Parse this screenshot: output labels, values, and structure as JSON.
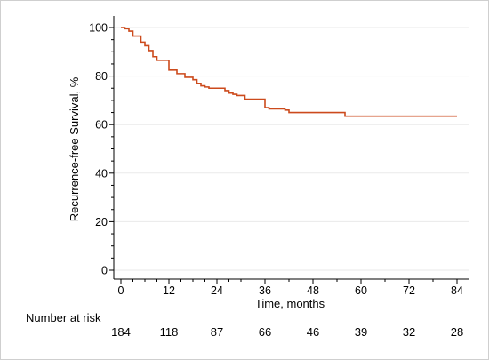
{
  "colors": {
    "curve": "#cc4a1c",
    "axis": "#000000",
    "grid": "#eaeaea",
    "border": "#cfcfcf"
  },
  "chart_data": {
    "type": "line",
    "subtype": "kaplan-meier step",
    "title": "",
    "xlabel": "Time, months",
    "ylabel": "Recurrence-free Survival, %",
    "xlim": [
      0,
      85
    ],
    "ylim": [
      0,
      100
    ],
    "xticks": [
      0,
      12,
      24,
      36,
      48,
      60,
      72,
      84
    ],
    "yticks": [
      0,
      20,
      40,
      60,
      80,
      100
    ],
    "grid": "horizontal",
    "series": [
      {
        "x": [
          0,
          1,
          2,
          3,
          5,
          6,
          7,
          8,
          9,
          12,
          14,
          16,
          18,
          19,
          20,
          21,
          22,
          26,
          27,
          28,
          29,
          31,
          36,
          37,
          41,
          42,
          56,
          84
        ],
        "y": [
          100,
          99.5,
          98.5,
          96.5,
          94,
          92.5,
          90.5,
          88,
          86.5,
          82.5,
          81,
          79.5,
          78.5,
          77,
          76,
          75.5,
          75,
          74,
          73,
          72.5,
          72,
          70.5,
          67,
          66.5,
          66,
          65,
          63.5,
          63.5
        ]
      }
    ],
    "risk_table": {
      "label": "Number at risk",
      "times": [
        0,
        12,
        24,
        36,
        48,
        60,
        72,
        84
      ],
      "counts": [
        "184",
        "118",
        "87",
        "66",
        "46",
        "39",
        "32",
        "28"
      ]
    }
  }
}
